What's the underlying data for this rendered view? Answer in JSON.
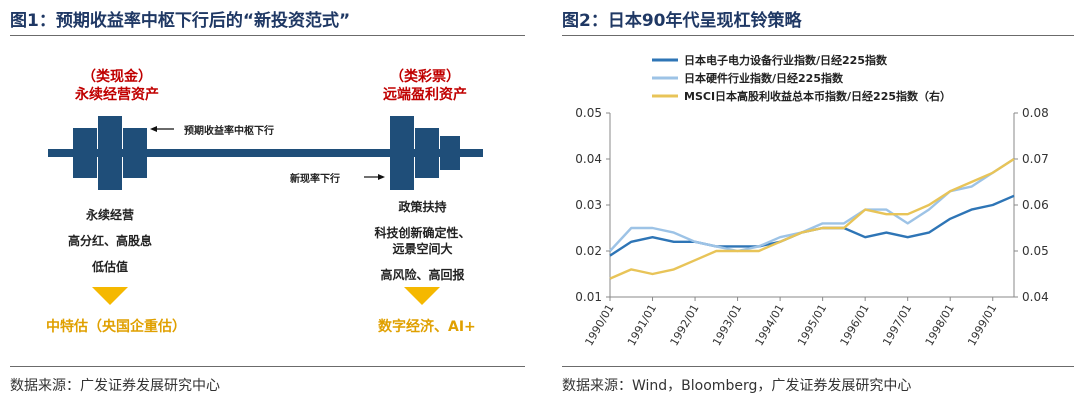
{
  "left": {
    "title": "图1：预期收益率中枢下行后的“新投资范式”",
    "bond_type": "（类现金）",
    "bond_name": "永续经营资产",
    "lottery_type": "（类彩票）",
    "lottery_name": "远端盈利资产",
    "arrow_label_1": "预期收益率中枢下行",
    "arrow_label_2": "新现率下行",
    "left_points": [
      "永续经营",
      "高分红、高股息",
      "低估值"
    ],
    "right_points": [
      "政策扶持",
      "科技创新确定性、",
      "远景空间大",
      "高风险、高回报"
    ],
    "left_conclusion": "中特估（央国企重估）",
    "right_conclusion": "数字经济、AI+",
    "source": "数据来源：广发证券发展研究中心",
    "accent": "#1f4e79",
    "gold": "#f5b800"
  },
  "right": {
    "title": "图2：日本90年代呈现杠铃策略",
    "source": "数据来源：Wind，Bloomberg，广发证券发展研究中心"
  },
  "chart_data": {
    "type": "line",
    "x": [
      "1990/01",
      "1990/07",
      "1991/01",
      "1991/07",
      "1992/01",
      "1992/07",
      "1993/01",
      "1993/07",
      "1994/01",
      "1994/07",
      "1995/01",
      "1995/07",
      "1996/01",
      "1996/07",
      "1997/01",
      "1997/07",
      "1998/01",
      "1998/07",
      "1999/01",
      "1999/07"
    ],
    "xticks": [
      "1990/01",
      "1991/01",
      "1992/01",
      "1993/01",
      "1994/01",
      "1995/01",
      "1996/01",
      "1997/01",
      "1998/01",
      "1999/01"
    ],
    "series": [
      {
        "name": "日本电子电力设备行业指数/日经225指数",
        "axis": "left",
        "color": "#2e75b6",
        "values": [
          0.019,
          0.022,
          0.023,
          0.022,
          0.022,
          0.021,
          0.021,
          0.021,
          0.022,
          0.024,
          0.025,
          0.025,
          0.023,
          0.024,
          0.023,
          0.024,
          0.027,
          0.029,
          0.03,
          0.032
        ]
      },
      {
        "name": "日本硬件行业指数/日经225指数",
        "axis": "left",
        "color": "#9dc3e6",
        "values": [
          0.02,
          0.025,
          0.025,
          0.024,
          0.022,
          0.021,
          0.02,
          0.021,
          0.023,
          0.024,
          0.026,
          0.026,
          0.029,
          0.029,
          0.026,
          0.029,
          0.033,
          0.034,
          0.037,
          0.04
        ]
      },
      {
        "name": "MSCI日本高股利收益总本币指数/日经225指数（右）",
        "axis": "right",
        "color": "#e8c458",
        "values": [
          0.044,
          0.046,
          0.045,
          0.046,
          0.048,
          0.05,
          0.05,
          0.05,
          0.052,
          0.054,
          0.055,
          0.055,
          0.059,
          0.058,
          0.058,
          0.06,
          0.063,
          0.065,
          0.067,
          0.07
        ]
      }
    ],
    "yleft": {
      "ticks": [
        "0.01",
        "0.02",
        "0.03",
        "0.04",
        "0.05"
      ],
      "range": [
        0.01,
        0.05
      ]
    },
    "yright": {
      "ticks": [
        "0.04",
        "0.05",
        "0.06",
        "0.07",
        "0.08"
      ],
      "range": [
        0.04,
        0.08
      ]
    },
    "legend": "top-left",
    "grid": false
  }
}
